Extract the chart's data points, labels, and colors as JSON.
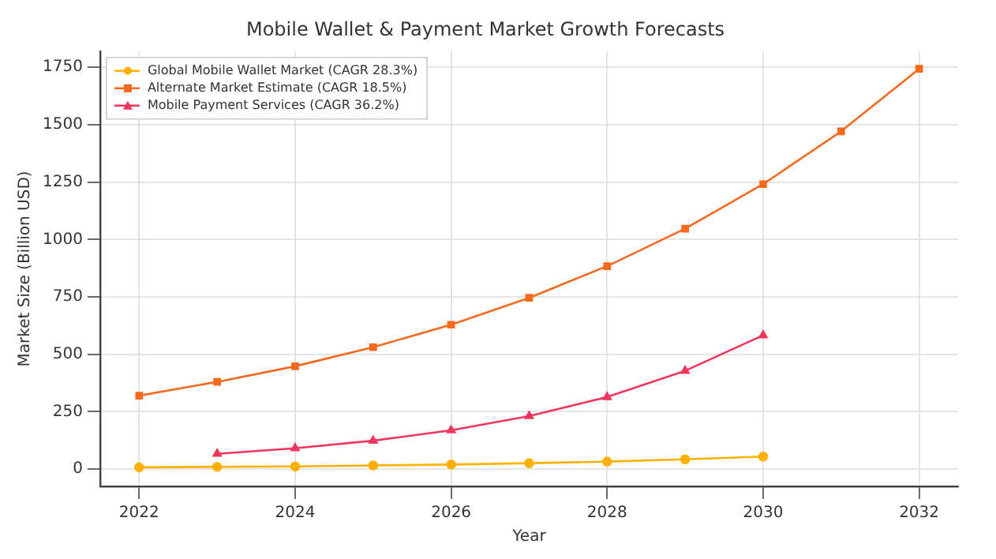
{
  "chart_data": {
    "type": "line",
    "title": "Mobile Wallet & Payment Market Growth Forecasts",
    "xlabel": "Year",
    "ylabel": "Market Size (Billion USD)",
    "series": [
      {
        "name": "Global Mobile Wallet Market (CAGR 28.3%)",
        "color": "#ffb000",
        "marker": "circle",
        "x": [
          2022,
          2023,
          2024,
          2025,
          2026,
          2027,
          2028,
          2029,
          2030
        ],
        "values": [
          8,
          10,
          12,
          16,
          20,
          26,
          33,
          43,
          55
        ]
      },
      {
        "name": "Alternate Market Estimate (CAGR 18.5%)",
        "color": "#f5691e",
        "marker": "square",
        "x": [
          2022,
          2023,
          2024,
          2025,
          2026,
          2027,
          2028,
          2029,
          2030,
          2031,
          2032
        ],
        "values": [
          320,
          380,
          448,
          531,
          629,
          746,
          884,
          1047,
          1241,
          1471,
          1743
        ]
      },
      {
        "name": "Mobile Payment Services (CAGR 36.2%)",
        "color": "#f0365c",
        "marker": "triangle",
        "x": [
          2023,
          2024,
          2025,
          2026,
          2027,
          2028,
          2029,
          2030
        ],
        "values": [
          67,
          91,
          124,
          169,
          231,
          314,
          428,
          583
        ]
      }
    ],
    "xlim": [
      2021.5,
      2032.5
    ],
    "xticks": [
      2022,
      2024,
      2026,
      2028,
      2030,
      2032
    ],
    "ylim": [
      -75,
      1820
    ],
    "yticks": [
      0,
      250,
      500,
      750,
      1000,
      1250,
      1500,
      1750
    ],
    "grid": true,
    "legend": "top left"
  }
}
